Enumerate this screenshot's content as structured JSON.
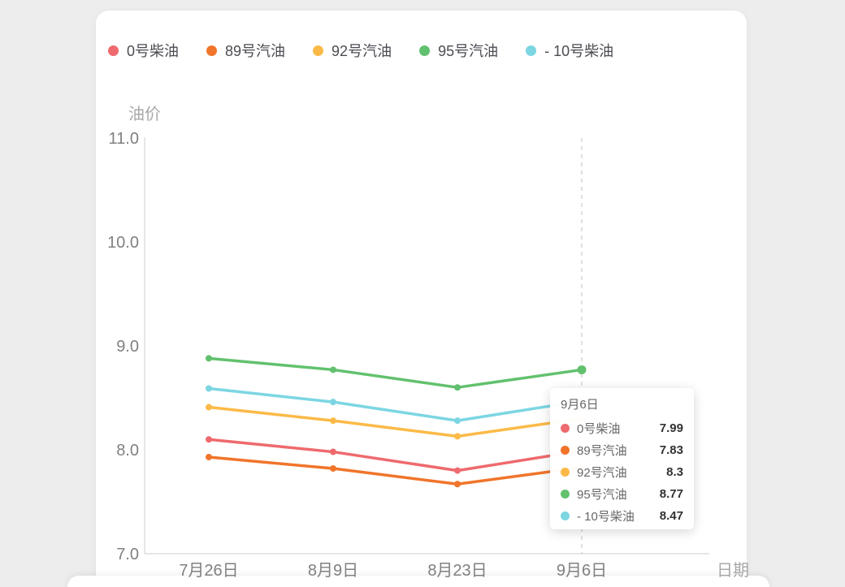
{
  "app": {
    "background": "#ededed",
    "card_background": "#ffffff"
  },
  "legend": {
    "items": [
      {
        "label": "0号柴油",
        "color": "#ee6a6e"
      },
      {
        "label": "89号汽油",
        "color": "#f0752b"
      },
      {
        "label": "92号汽油",
        "color": "#fbba48"
      },
      {
        "label": "95号汽油",
        "color": "#62c16e"
      },
      {
        "label": "- 10号柴油",
        "color": "#7cd6e2"
      }
    ]
  },
  "chart_data": {
    "type": "line",
    "title": "",
    "x_axis_name": "日期",
    "y_axis_name": "油价",
    "categories": [
      "7月26日",
      "8月9日",
      "8月23日",
      "9月6日"
    ],
    "series": [
      {
        "name": "0号柴油",
        "color": "#ee6a6e",
        "values": [
          8.1,
          7.98,
          7.8,
          7.99
        ]
      },
      {
        "name": "89号汽油",
        "color": "#f0752b",
        "values": [
          7.93,
          7.82,
          7.67,
          7.83
        ]
      },
      {
        "name": "92号汽油",
        "color": "#fbba48",
        "values": [
          8.41,
          8.28,
          8.13,
          8.3
        ]
      },
      {
        "name": "95号汽油",
        "color": "#62c16e",
        "values": [
          8.88,
          8.77,
          8.6,
          8.77
        ]
      },
      {
        "name": "- 10号柴油",
        "color": "#7cd6e2",
        "values": [
          8.59,
          8.46,
          8.28,
          8.47
        ]
      }
    ],
    "ylim": [
      7.0,
      11.0
    ],
    "y_ticks": [
      "11.0",
      "10.0",
      "9.0",
      "8.0",
      "7.0"
    ],
    "grid": false,
    "legend_position": "top",
    "hover": {
      "category": "9月6日",
      "emphasized_series": "95号汽油"
    }
  },
  "tooltip": {
    "title": "9月6日",
    "rows": [
      {
        "label": "0号柴油",
        "color": "#ee6a6e",
        "value": "7.99"
      },
      {
        "label": "89号汽油",
        "color": "#f0752b",
        "value": "7.83"
      },
      {
        "label": "92号汽油",
        "color": "#fbba48",
        "value": "8.3"
      },
      {
        "label": "95号汽油",
        "color": "#62c16e",
        "value": "8.77"
      },
      {
        "label": "- 10号柴油",
        "color": "#7cd6e2",
        "value": "8.47"
      }
    ]
  },
  "axis_colors": {
    "line": "#cccccc",
    "tick_label": "#808080",
    "dashed_indicator": "#bfbfbf"
  }
}
